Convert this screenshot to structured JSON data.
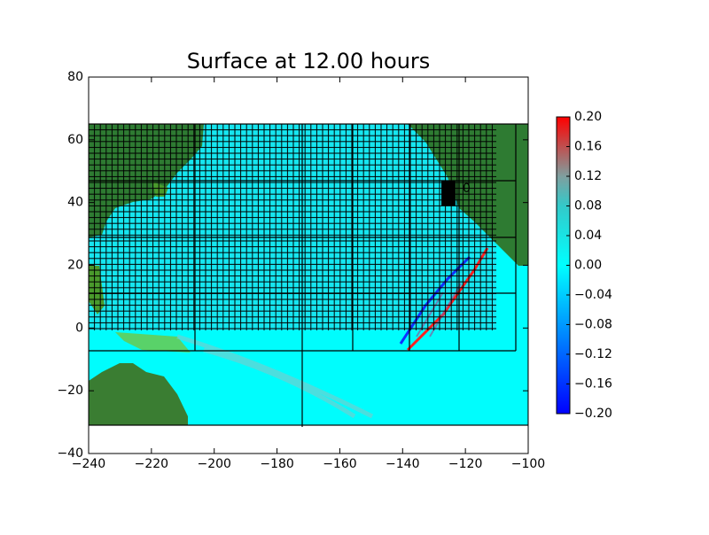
{
  "chart_data": {
    "type": "heatmap",
    "title": "Surface at 12.00 hours",
    "xlim": [
      -240,
      -100
    ],
    "ylim": [
      -40,
      80
    ],
    "xticks": [
      {
        "value": -240,
        "label": "−240"
      },
      {
        "value": -220,
        "label": "−220"
      },
      {
        "value": -200,
        "label": "−200"
      },
      {
        "value": -180,
        "label": "−180"
      },
      {
        "value": -160,
        "label": "−160"
      },
      {
        "value": -140,
        "label": "−140"
      },
      {
        "value": -120,
        "label": "−120"
      },
      {
        "value": -100,
        "label": "−100"
      }
    ],
    "yticks": [
      {
        "value": -40,
        "label": "−40"
      },
      {
        "value": -20,
        "label": "−20"
      },
      0,
      20,
      40,
      60,
      80
    ],
    "colorbar": {
      "lim": [
        -0.2,
        0.2
      ],
      "ticks": [
        {
          "value": 0.2,
          "label": "0.20"
        },
        {
          "value": 0.16,
          "label": "0.16"
        },
        {
          "value": 0.12,
          "label": "0.12"
        },
        {
          "value": 0.08,
          "label": "0.08"
        },
        {
          "value": 0.04,
          "label": "0.04"
        },
        {
          "value": 0,
          "label": "0.00"
        },
        {
          "value": -0.04,
          "label": "−0.04"
        },
        {
          "value": -0.08,
          "label": "−0.08"
        },
        {
          "value": -0.12,
          "label": "−0.12"
        },
        {
          "value": -0.16,
          "label": "−0.16"
        },
        {
          "value": -0.2,
          "label": "−0.20"
        }
      ]
    },
    "gauge_label": "0"
  }
}
